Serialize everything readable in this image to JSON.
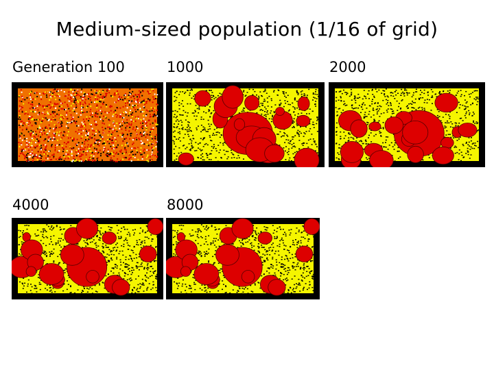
{
  "title": "Medium-sized population (1/16 of grid)",
  "panels": [
    {
      "label": "Generation 100",
      "style": "noise"
    },
    {
      "label": "1000",
      "style": "clusters",
      "seed": 11
    },
    {
      "label": "2000",
      "style": "clusters",
      "seed": 23
    },
    {
      "label": "4000",
      "style": "clusters",
      "seed": 37
    },
    {
      "label": "8000",
      "style": "clusters",
      "seed": 37
    }
  ],
  "colors": {
    "red": "#dd0000",
    "yellow": "#f5f500",
    "orange": "#f07000",
    "black": "#000000"
  }
}
